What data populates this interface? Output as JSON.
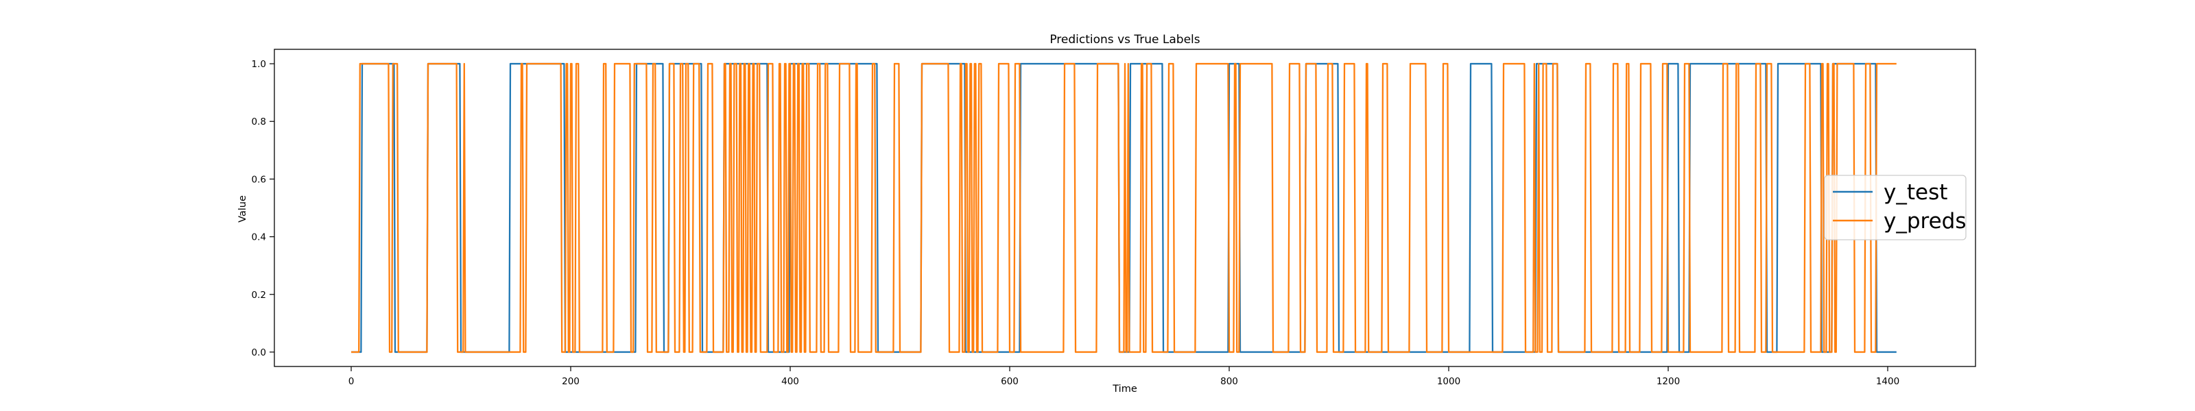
{
  "chart_data": {
    "type": "line",
    "title": "Predictions vs True Labels",
    "xlabel": "Time",
    "ylabel": "Value",
    "xlim": [
      -70,
      1480
    ],
    "ylim": [
      -0.05,
      1.05
    ],
    "xticks": [
      0,
      200,
      400,
      600,
      800,
      1000,
      1200,
      1400
    ],
    "yticks": [
      0.0,
      0.2,
      0.4,
      0.6,
      0.8,
      1.0
    ],
    "grid": false,
    "legend_position": "center-right",
    "n_points": 1409,
    "series": [
      {
        "name": "y_test",
        "color": "#1f77b4",
        "step_transitions": [
          [
            0,
            0
          ],
          [
            10,
            1
          ],
          [
            40,
            0
          ],
          [
            70,
            1
          ],
          [
            100,
            0
          ],
          [
            145,
            1
          ],
          [
            195,
            0
          ],
          [
            260,
            1
          ],
          [
            285,
            0
          ],
          [
            290,
            1
          ],
          [
            320,
            0
          ],
          [
            340,
            1
          ],
          [
            380,
            0
          ],
          [
            400,
            1
          ],
          [
            480,
            0
          ],
          [
            520,
            1
          ],
          [
            560,
            0
          ],
          [
            610,
            1
          ],
          [
            700,
            0
          ],
          [
            710,
            1
          ],
          [
            740,
            0
          ],
          [
            800,
            1
          ],
          [
            810,
            0
          ],
          [
            870,
            1
          ],
          [
            900,
            0
          ],
          [
            1020,
            1
          ],
          [
            1040,
            0
          ],
          [
            1080,
            1
          ],
          [
            1100,
            0
          ],
          [
            1200,
            1
          ],
          [
            1210,
            0
          ],
          [
            1220,
            1
          ],
          [
            1290,
            0
          ],
          [
            1300,
            1
          ],
          [
            1340,
            0
          ],
          [
            1350,
            1
          ],
          [
            1390,
            0
          ]
        ]
      },
      {
        "name": "y_preds",
        "color": "#ff7f0e",
        "step_transitions": [
          [
            0,
            0
          ],
          [
            8,
            1
          ],
          [
            35,
            0
          ],
          [
            38,
            1
          ],
          [
            43,
            0
          ],
          [
            70,
            1
          ],
          [
            97,
            0
          ],
          [
            103,
            1
          ],
          [
            104,
            0
          ],
          [
            155,
            1
          ],
          [
            157,
            0
          ],
          [
            160,
            1
          ],
          [
            192,
            0
          ],
          [
            196,
            1
          ],
          [
            198,
            0
          ],
          [
            200,
            1
          ],
          [
            202,
            0
          ],
          [
            205,
            1
          ],
          [
            208,
            0
          ],
          [
            230,
            1
          ],
          [
            233,
            0
          ],
          [
            240,
            1
          ],
          [
            255,
            0
          ],
          [
            258,
            1
          ],
          [
            270,
            0
          ],
          [
            275,
            1
          ],
          [
            278,
            0
          ],
          [
            290,
            1
          ],
          [
            295,
            0
          ],
          [
            300,
            1
          ],
          [
            303,
            0
          ],
          [
            305,
            1
          ],
          [
            308,
            0
          ],
          [
            312,
            1
          ],
          [
            318,
            0
          ],
          [
            325,
            1
          ],
          [
            330,
            0
          ],
          [
            340,
            1
          ],
          [
            342,
            0
          ],
          [
            345,
            1
          ],
          [
            347,
            0
          ],
          [
            349,
            1
          ],
          [
            352,
            0
          ],
          [
            354,
            1
          ],
          [
            356,
            0
          ],
          [
            358,
            1
          ],
          [
            360,
            0
          ],
          [
            362,
            1
          ],
          [
            364,
            0
          ],
          [
            366,
            1
          ],
          [
            368,
            0
          ],
          [
            370,
            1
          ],
          [
            373,
            0
          ],
          [
            380,
            1
          ],
          [
            385,
            0
          ],
          [
            390,
            1
          ],
          [
            392,
            0
          ],
          [
            395,
            1
          ],
          [
            397,
            0
          ],
          [
            399,
            1
          ],
          [
            401,
            0
          ],
          [
            403,
            1
          ],
          [
            405,
            0
          ],
          [
            407,
            1
          ],
          [
            409,
            0
          ],
          [
            411,
            1
          ],
          [
            413,
            0
          ],
          [
            415,
            1
          ],
          [
            418,
            0
          ],
          [
            425,
            1
          ],
          [
            428,
            0
          ],
          [
            432,
            1
          ],
          [
            435,
            0
          ],
          [
            445,
            1
          ],
          [
            455,
            0
          ],
          [
            460,
            1
          ],
          [
            462,
            0
          ],
          [
            475,
            1
          ],
          [
            478,
            0
          ],
          [
            495,
            1
          ],
          [
            500,
            0
          ],
          [
            520,
            1
          ],
          [
            545,
            0
          ],
          [
            555,
            1
          ],
          [
            557,
            0
          ],
          [
            560,
            1
          ],
          [
            562,
            0
          ],
          [
            564,
            1
          ],
          [
            566,
            0
          ],
          [
            568,
            1
          ],
          [
            570,
            0
          ],
          [
            572,
            1
          ],
          [
            575,
            0
          ],
          [
            590,
            1
          ],
          [
            600,
            0
          ],
          [
            605,
            1
          ],
          [
            610,
            0
          ],
          [
            650,
            1
          ],
          [
            660,
            0
          ],
          [
            680,
            1
          ],
          [
            700,
            0
          ],
          [
            705,
            1
          ],
          [
            706,
            0
          ],
          [
            708,
            1
          ],
          [
            709,
            0
          ],
          [
            720,
            1
          ],
          [
            722,
            0
          ],
          [
            725,
            1
          ],
          [
            730,
            0
          ],
          [
            745,
            1
          ],
          [
            750,
            0
          ],
          [
            770,
            1
          ],
          [
            800,
            0
          ],
          [
            805,
            1
          ],
          [
            807,
            0
          ],
          [
            810,
            1
          ],
          [
            840,
            0
          ],
          [
            855,
            1
          ],
          [
            865,
            0
          ],
          [
            870,
            1
          ],
          [
            880,
            0
          ],
          [
            890,
            1
          ],
          [
            895,
            0
          ],
          [
            905,
            1
          ],
          [
            915,
            0
          ],
          [
            925,
            1
          ],
          [
            927,
            0
          ],
          [
            940,
            1
          ],
          [
            945,
            0
          ],
          [
            965,
            1
          ],
          [
            980,
            0
          ],
          [
            995,
            1
          ],
          [
            1000,
            0
          ],
          [
            1050,
            1
          ],
          [
            1070,
            0
          ],
          [
            1078,
            1
          ],
          [
            1079,
            0
          ],
          [
            1082,
            1
          ],
          [
            1083,
            0
          ],
          [
            1086,
            1
          ],
          [
            1090,
            0
          ],
          [
            1095,
            1
          ],
          [
            1100,
            0
          ],
          [
            1125,
            1
          ],
          [
            1130,
            0
          ],
          [
            1150,
            1
          ],
          [
            1155,
            0
          ],
          [
            1162,
            1
          ],
          [
            1165,
            0
          ],
          [
            1175,
            1
          ],
          [
            1185,
            0
          ],
          [
            1195,
            1
          ],
          [
            1200,
            0
          ],
          [
            1215,
            1
          ],
          [
            1220,
            0
          ],
          [
            1250,
            1
          ],
          [
            1255,
            0
          ],
          [
            1262,
            1
          ],
          [
            1265,
            0
          ],
          [
            1280,
            1
          ],
          [
            1285,
            0
          ],
          [
            1290,
            1
          ],
          [
            1295,
            0
          ],
          [
            1325,
            1
          ],
          [
            1330,
            0
          ],
          [
            1340,
            1
          ],
          [
            1342,
            0
          ],
          [
            1345,
            1
          ],
          [
            1347,
            0
          ],
          [
            1350,
            1
          ],
          [
            1352,
            0
          ],
          [
            1354,
            1
          ],
          [
            1370,
            0
          ],
          [
            1380,
            1
          ],
          [
            1385,
            0
          ],
          [
            1390,
            1
          ],
          [
            1408,
            1
          ]
        ]
      }
    ]
  }
}
